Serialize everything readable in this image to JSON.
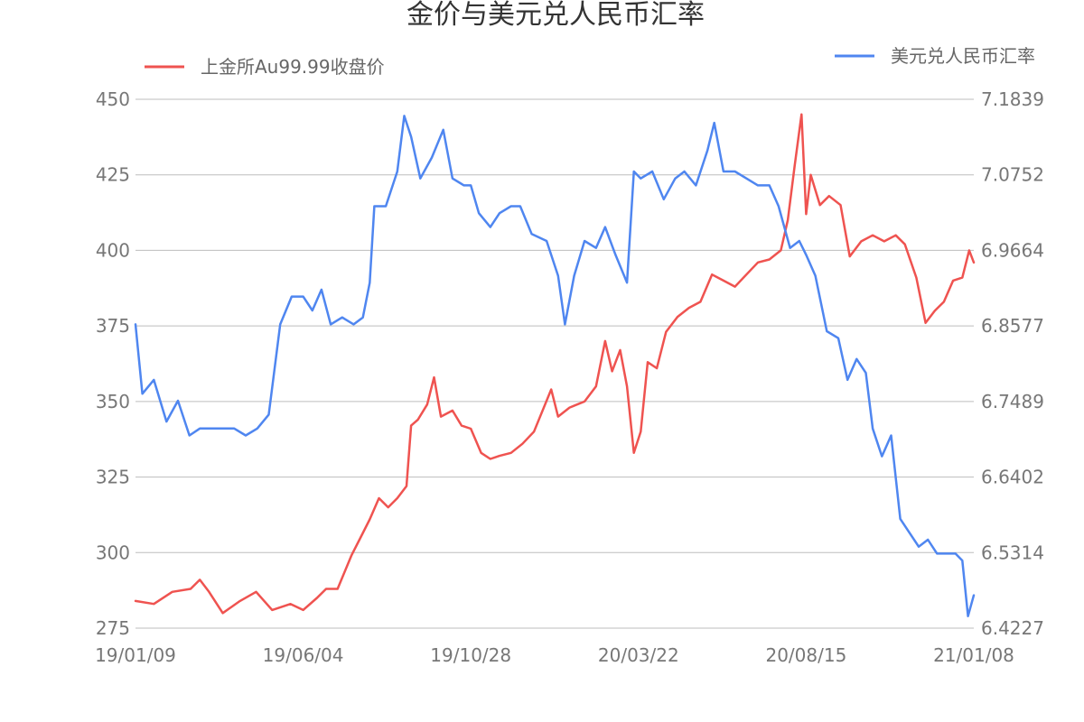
{
  "chart_data": {
    "type": "line",
    "title": "金价与美元兑人民币汇率",
    "legend_position": "top",
    "grid": true,
    "x_tick_labels": [
      "19/01/09",
      "19/06/04",
      "19/10/28",
      "20/03/22",
      "20/08/15",
      "21/01/08"
    ],
    "left_axis": {
      "ticks": [
        "275",
        "300",
        "325",
        "350",
        "375",
        "400",
        "425",
        "450"
      ],
      "range": [
        275,
        450
      ]
    },
    "right_axis": {
      "ticks": [
        "6.4227",
        "6.5314",
        "6.6402",
        "6.7489",
        "6.8577",
        "6.9664",
        "7.0752",
        "7.1839"
      ],
      "range": [
        6.4227,
        7.1839
      ]
    },
    "series": [
      {
        "name": "上金所Au99.99收盘价",
        "axis": "left",
        "color": "#ef5350",
        "points": [
          [
            "19/01/09",
            284
          ],
          [
            "19/01/25",
            283
          ],
          [
            "19/02/10",
            287
          ],
          [
            "19/02/26",
            288
          ],
          [
            "19/03/06",
            291
          ],
          [
            "19/03/14",
            287
          ],
          [
            "19/03/26",
            280
          ],
          [
            "19/04/10",
            284
          ],
          [
            "19/04/24",
            287
          ],
          [
            "19/05/08",
            281
          ],
          [
            "19/05/24",
            283
          ],
          [
            "19/06/04",
            281
          ],
          [
            "19/06/16",
            285
          ],
          [
            "19/06/24",
            288
          ],
          [
            "19/07/04",
            288
          ],
          [
            "19/07/16",
            299
          ],
          [
            "19/07/24",
            305
          ],
          [
            "19/08/01",
            311
          ],
          [
            "19/08/09",
            318
          ],
          [
            "19/08/17",
            315
          ],
          [
            "19/08/25",
            318
          ],
          [
            "19/09/02",
            322
          ],
          [
            "19/09/06",
            342
          ],
          [
            "19/09/12",
            344
          ],
          [
            "19/09/20",
            349
          ],
          [
            "19/09/26",
            358
          ],
          [
            "19/10/02",
            345
          ],
          [
            "19/10/12",
            347
          ],
          [
            "19/10/20",
            342
          ],
          [
            "19/10/28",
            341
          ],
          [
            "19/11/06",
            333
          ],
          [
            "19/11/14",
            331
          ],
          [
            "19/11/22",
            332
          ],
          [
            "19/12/02",
            333
          ],
          [
            "19/12/12",
            336
          ],
          [
            "19/12/22",
            340
          ],
          [
            "20/01/06",
            354
          ],
          [
            "20/01/12",
            345
          ],
          [
            "20/01/22",
            348
          ],
          [
            "20/02/04",
            350
          ],
          [
            "20/02/14",
            355
          ],
          [
            "20/02/22",
            370
          ],
          [
            "20/02/28",
            360
          ],
          [
            "20/03/06",
            367
          ],
          [
            "20/03/12",
            355
          ],
          [
            "20/03/18",
            333
          ],
          [
            "20/03/24",
            340
          ],
          [
            "20/03/30",
            363
          ],
          [
            "20/04/07",
            361
          ],
          [
            "20/04/15",
            373
          ],
          [
            "20/04/25",
            378
          ],
          [
            "20/05/05",
            381
          ],
          [
            "20/05/15",
            383
          ],
          [
            "20/05/25",
            392
          ],
          [
            "20/06/04",
            390
          ],
          [
            "20/06/14",
            388
          ],
          [
            "20/06/24",
            392
          ],
          [
            "20/07/04",
            396
          ],
          [
            "20/07/14",
            397
          ],
          [
            "20/07/24",
            400
          ],
          [
            "20/07/30",
            410
          ],
          [
            "20/08/05",
            428
          ],
          [
            "20/08/11",
            445
          ],
          [
            "20/08/15",
            412
          ],
          [
            "20/08/19",
            425
          ],
          [
            "20/08/27",
            415
          ],
          [
            "20/09/04",
            418
          ],
          [
            "20/09/14",
            415
          ],
          [
            "20/09/22",
            398
          ],
          [
            "20/10/02",
            403
          ],
          [
            "20/10/12",
            405
          ],
          [
            "20/10/22",
            403
          ],
          [
            "20/11/01",
            405
          ],
          [
            "20/11/09",
            402
          ],
          [
            "20/11/19",
            391
          ],
          [
            "20/11/27",
            376
          ],
          [
            "20/12/05",
            380
          ],
          [
            "20/12/13",
            383
          ],
          [
            "20/12/21",
            390
          ],
          [
            "20/12/29",
            391
          ],
          [
            "21/01/04",
            400
          ],
          [
            "21/01/08",
            396
          ]
        ]
      },
      {
        "name": "美元兑人民币汇率",
        "axis": "right",
        "color": "#4f86f0",
        "points": [
          [
            "19/01/09",
            6.86
          ],
          [
            "19/01/15",
            6.76
          ],
          [
            "19/01/25",
            6.78
          ],
          [
            "19/02/05",
            6.72
          ],
          [
            "19/02/15",
            6.75
          ],
          [
            "19/02/25",
            6.7
          ],
          [
            "19/03/06",
            6.71
          ],
          [
            "19/03/16",
            6.71
          ],
          [
            "19/03/26",
            6.71
          ],
          [
            "19/04/05",
            6.71
          ],
          [
            "19/04/15",
            6.7
          ],
          [
            "19/04/25",
            6.71
          ],
          [
            "19/05/05",
            6.73
          ],
          [
            "19/05/15",
            6.86
          ],
          [
            "19/05/25",
            6.9
          ],
          [
            "19/06/04",
            6.9
          ],
          [
            "19/06/12",
            6.88
          ],
          [
            "19/06/20",
            6.91
          ],
          [
            "19/06/28",
            6.86
          ],
          [
            "19/07/08",
            6.87
          ],
          [
            "19/07/18",
            6.86
          ],
          [
            "19/07/26",
            6.87
          ],
          [
            "19/08/01",
            6.92
          ],
          [
            "19/08/05",
            7.03
          ],
          [
            "19/08/15",
            7.03
          ],
          [
            "19/08/25",
            7.08
          ],
          [
            "19/08/31",
            7.16
          ],
          [
            "19/09/06",
            7.13
          ],
          [
            "19/09/14",
            7.07
          ],
          [
            "19/09/24",
            7.1
          ],
          [
            "19/10/04",
            7.14
          ],
          [
            "19/10/12",
            7.07
          ],
          [
            "19/10/22",
            7.06
          ],
          [
            "19/10/28",
            7.06
          ],
          [
            "19/11/04",
            7.02
          ],
          [
            "19/11/14",
            7.0
          ],
          [
            "19/11/22",
            7.02
          ],
          [
            "19/12/02",
            7.03
          ],
          [
            "19/12/10",
            7.03
          ],
          [
            "19/12/20",
            6.99
          ],
          [
            "20/01/02",
            6.98
          ],
          [
            "20/01/12",
            6.93
          ],
          [
            "20/01/18",
            6.86
          ],
          [
            "20/01/26",
            6.93
          ],
          [
            "20/02/04",
            6.98
          ],
          [
            "20/02/14",
            6.97
          ],
          [
            "20/02/22",
            7.0
          ],
          [
            "20/03/02",
            6.96
          ],
          [
            "20/03/12",
            6.92
          ],
          [
            "20/03/18",
            7.08
          ],
          [
            "20/03/24",
            7.07
          ],
          [
            "20/04/03",
            7.08
          ],
          [
            "20/04/13",
            7.04
          ],
          [
            "20/04/23",
            7.07
          ],
          [
            "20/05/01",
            7.08
          ],
          [
            "20/05/11",
            7.06
          ],
          [
            "20/05/21",
            7.11
          ],
          [
            "20/05/27",
            7.15
          ],
          [
            "20/06/04",
            7.08
          ],
          [
            "20/06/14",
            7.08
          ],
          [
            "20/06/24",
            7.07
          ],
          [
            "20/07/04",
            7.06
          ],
          [
            "20/07/14",
            7.06
          ],
          [
            "20/07/22",
            7.03
          ],
          [
            "20/08/01",
            6.97
          ],
          [
            "20/08/09",
            6.98
          ],
          [
            "20/08/15",
            6.96
          ],
          [
            "20/08/23",
            6.93
          ],
          [
            "20/09/02",
            6.85
          ],
          [
            "20/09/12",
            6.84
          ],
          [
            "20/09/20",
            6.78
          ],
          [
            "20/09/28",
            6.81
          ],
          [
            "20/10/06",
            6.79
          ],
          [
            "20/10/12",
            6.71
          ],
          [
            "20/10/20",
            6.67
          ],
          [
            "20/10/28",
            6.7
          ],
          [
            "20/11/05",
            6.58
          ],
          [
            "20/11/13",
            6.56
          ],
          [
            "20/11/21",
            6.54
          ],
          [
            "20/11/29",
            6.55
          ],
          [
            "20/12/07",
            6.53
          ],
          [
            "20/12/15",
            6.53
          ],
          [
            "20/12/23",
            6.53
          ],
          [
            "20/12/29",
            6.52
          ],
          [
            "21/01/03",
            6.44
          ],
          [
            "21/01/08",
            6.47
          ]
        ]
      }
    ]
  }
}
